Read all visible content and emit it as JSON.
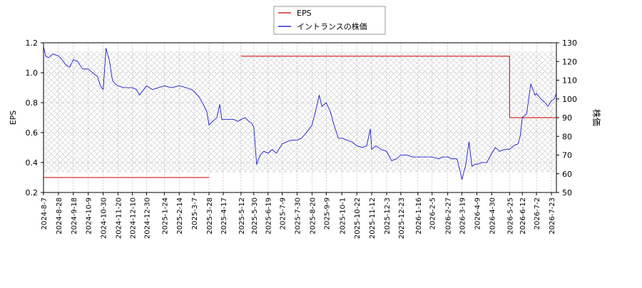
{
  "chart_data": {
    "type": "line",
    "legend": {
      "placement": "top-center",
      "items": [
        {
          "name": "EPS",
          "color": "#cc0000"
        },
        {
          "name": "イントランスの株価",
          "color": "#0000cc"
        }
      ]
    },
    "xlabel": "",
    "ylabel_left": "EPS",
    "ylabel_right": "株価",
    "ylim_left": [
      0.2,
      1.2
    ],
    "ylim_right": [
      50,
      130
    ],
    "yticks_left": [
      "0.2",
      "0.4",
      "0.6",
      "0.8",
      "1.0",
      "1.2"
    ],
    "yticks_right": [
      "50",
      "60",
      "70",
      "80",
      "90",
      "100",
      "110",
      "120",
      "130"
    ],
    "x_ticks": [
      "2024-8-7",
      "2024-8-28",
      "2024-9-18",
      "2024-10-9",
      "2024-10-30",
      "2024-11-20",
      "2024-12-10",
      "2024-12-30",
      "2025-1-24",
      "2025-2-14",
      "2025-3-7",
      "2025-3-28",
      "2025-4-17",
      "2025-5-12",
      "2025-5-30",
      "2025-6-19",
      "2025-7-9",
      "2025-7-30",
      "2025-8-20",
      "2025-9-9",
      "2025-10-1",
      "2025-10-22",
      "2025-11-12",
      "2025-12-3",
      "2025-12-23",
      "2026-1-16",
      "2026-2-5",
      "2026-2-27",
      "2026-3-19",
      "2026-4-9",
      "2026-4-30",
      "2026-5-25",
      "2026-6-12",
      "2026-7-2",
      "2026-7-23"
    ],
    "grid": true,
    "series": [
      {
        "name": "EPS",
        "axis": "left",
        "color": "#cc0000",
        "segments": [
          [
            [
              "2024-8-7",
              0.3
            ],
            [
              "2025-3-28",
              0.3
            ]
          ],
          [
            [
              "2025-5-12",
              1.11
            ],
            [
              "2026-5-25",
              1.11
            ],
            [
              "2026-5-25",
              0.7
            ],
            [
              "2026-7-30",
              0.7
            ]
          ]
        ]
      },
      {
        "name": "イントランスの株価",
        "axis": "right",
        "color": "#0000cc",
        "points": [
          [
            "2024-8-7",
            128
          ],
          [
            "2024-8-10",
            123
          ],
          [
            "2024-8-14",
            122
          ],
          [
            "2024-8-20",
            124
          ],
          [
            "2024-8-28",
            123
          ],
          [
            "2024-9-2",
            121
          ],
          [
            "2024-9-8",
            118
          ],
          [
            "2024-9-13",
            117
          ],
          [
            "2024-9-18",
            121
          ],
          [
            "2024-9-24",
            120
          ],
          [
            "2024-10-1",
            116
          ],
          [
            "2024-10-9",
            116
          ],
          [
            "2024-10-15",
            114
          ],
          [
            "2024-10-22",
            112
          ],
          [
            "2024-10-26",
            107
          ],
          [
            "2024-10-30",
            105
          ],
          [
            "2024-11-3",
            127
          ],
          [
            "2024-11-8",
            120
          ],
          [
            "2024-11-12",
            110
          ],
          [
            "2024-11-16",
            108
          ],
          [
            "2024-11-20",
            107
          ],
          [
            "2024-11-28",
            106
          ],
          [
            "2024-12-5",
            106
          ],
          [
            "2024-12-10",
            106
          ],
          [
            "2024-12-16",
            105
          ],
          [
            "2024-12-20",
            102
          ],
          [
            "2024-12-26",
            105
          ],
          [
            "2024-12-30",
            107
          ],
          [
            "2025-1-7",
            105
          ],
          [
            "2025-1-16",
            106
          ],
          [
            "2025-1-24",
            107
          ],
          [
            "2025-2-3",
            106
          ],
          [
            "2025-2-14",
            107
          ],
          [
            "2025-2-24",
            106
          ],
          [
            "2025-3-3",
            105
          ],
          [
            "2025-3-7",
            104
          ],
          [
            "2025-3-14",
            101
          ],
          [
            "2025-3-20",
            97
          ],
          [
            "2025-3-25",
            93
          ],
          [
            "2025-3-28",
            86
          ],
          [
            "2025-4-2",
            88
          ],
          [
            "2025-4-8",
            90
          ],
          [
            "2025-4-12",
            97
          ],
          [
            "2025-4-15",
            89
          ],
          [
            "2025-4-17",
            89
          ],
          [
            "2025-4-25",
            89
          ],
          [
            "2025-5-2",
            89
          ],
          [
            "2025-5-8",
            88
          ],
          [
            "2025-5-12",
            89
          ],
          [
            "2025-5-18",
            90
          ],
          [
            "2025-5-23",
            88
          ],
          [
            "2025-5-27",
            87
          ],
          [
            "2025-5-30",
            85
          ],
          [
            "2025-6-3",
            65
          ],
          [
            "2025-6-8",
            70
          ],
          [
            "2025-6-13",
            72
          ],
          [
            "2025-6-19",
            71
          ],
          [
            "2025-6-25",
            73
          ],
          [
            "2025-7-1",
            71
          ],
          [
            "2025-7-9",
            76
          ],
          [
            "2025-7-15",
            77
          ],
          [
            "2025-7-22",
            78
          ],
          [
            "2025-7-30",
            78
          ],
          [
            "2025-8-5",
            79
          ],
          [
            "2025-8-12",
            82
          ],
          [
            "2025-8-20",
            86
          ],
          [
            "2025-8-26",
            95
          ],
          [
            "2025-8-30",
            102
          ],
          [
            "2025-9-3",
            96
          ],
          [
            "2025-9-9",
            98
          ],
          [
            "2025-9-15",
            93
          ],
          [
            "2025-9-20",
            86
          ],
          [
            "2025-9-26",
            79
          ],
          [
            "2025-10-1",
            79
          ],
          [
            "2025-10-8",
            78
          ],
          [
            "2025-10-15",
            77
          ],
          [
            "2025-10-22",
            75
          ],
          [
            "2025-10-30",
            74
          ],
          [
            "2025-11-5",
            75
          ],
          [
            "2025-11-10",
            84
          ],
          [
            "2025-11-12",
            73
          ],
          [
            "2025-11-18",
            75
          ],
          [
            "2025-11-25",
            73
          ],
          [
            "2025-12-3",
            72
          ],
          [
            "2025-12-10",
            67
          ],
          [
            "2025-12-17",
            68
          ],
          [
            "2025-12-23",
            70
          ],
          [
            "2026-1-1",
            70
          ],
          [
            "2026-1-8",
            69
          ],
          [
            "2026-1-16",
            69
          ],
          [
            "2026-1-25",
            69
          ],
          [
            "2026-2-5",
            69
          ],
          [
            "2026-2-14",
            68
          ],
          [
            "2026-2-20",
            69
          ],
          [
            "2026-2-27",
            69
          ],
          [
            "2026-3-5",
            68
          ],
          [
            "2026-3-12",
            68
          ],
          [
            "2026-3-16",
            62
          ],
          [
            "2026-3-19",
            57
          ],
          [
            "2026-3-24",
            64
          ],
          [
            "2026-3-29",
            77
          ],
          [
            "2026-4-2",
            64
          ],
          [
            "2026-4-6",
            65
          ],
          [
            "2026-4-9",
            65
          ],
          [
            "2026-4-16",
            66
          ],
          [
            "2026-4-23",
            66
          ],
          [
            "2026-4-30",
            71
          ],
          [
            "2026-5-5",
            74
          ],
          [
            "2026-5-11",
            72
          ],
          [
            "2026-5-18",
            73
          ],
          [
            "2026-5-25",
            73
          ],
          [
            "2026-5-31",
            75
          ],
          [
            "2026-6-6",
            76
          ],
          [
            "2026-6-9",
            80
          ],
          [
            "2026-6-12",
            90
          ],
          [
            "2026-6-18",
            92
          ],
          [
            "2026-6-24",
            108
          ],
          [
            "2026-6-30",
            102
          ],
          [
            "2026-7-2",
            103
          ],
          [
            "2026-7-8",
            100
          ],
          [
            "2026-7-14",
            98
          ],
          [
            "2026-7-18",
            96
          ],
          [
            "2026-7-23",
            99
          ],
          [
            "2026-7-27",
            100
          ],
          [
            "2026-7-30",
            103
          ]
        ]
      }
    ]
  }
}
